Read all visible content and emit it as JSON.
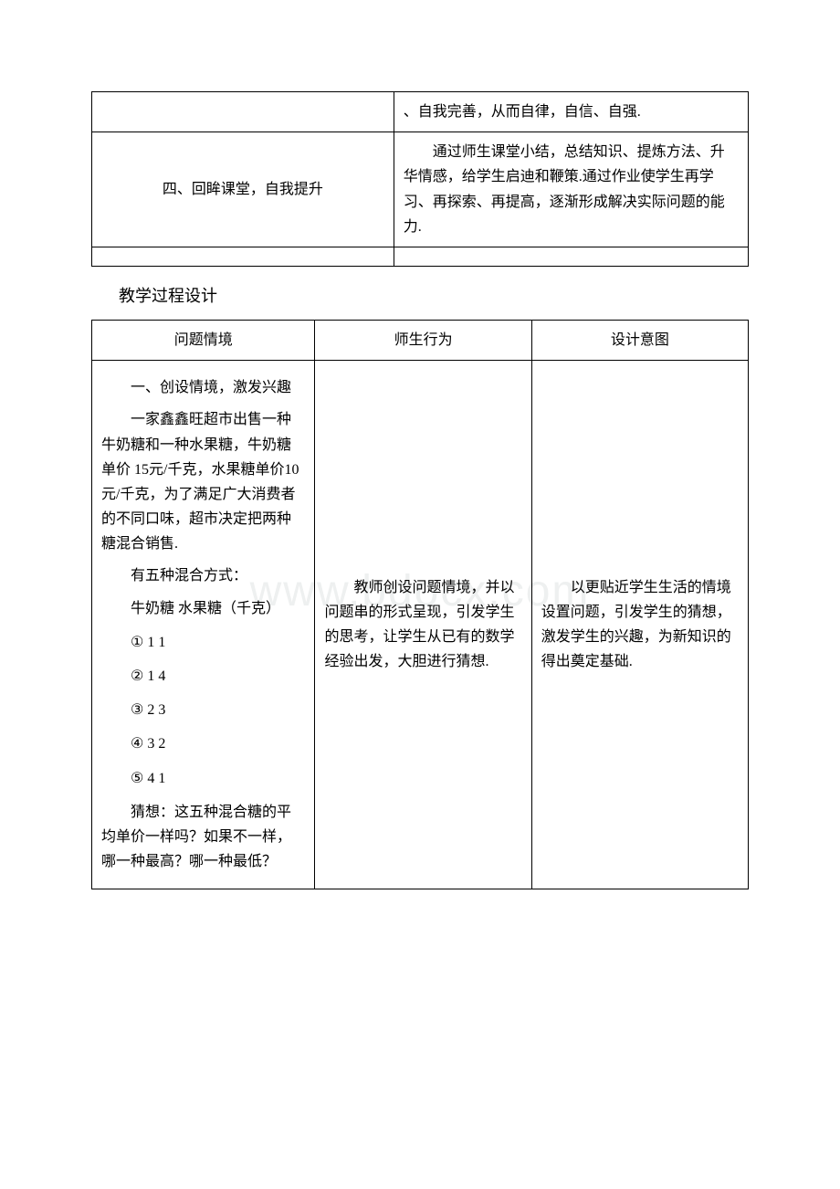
{
  "watermark": "www.bdocx.com",
  "table1": {
    "row1": {
      "right": "、自我完善，从而自律，自信、自强."
    },
    "row2": {
      "left": "四、回眸课堂，自我提升",
      "right_p1": "通过师生课堂小结，总结知识、提炼方法、升华情感，给学生启迪和鞭策.通过作业使学生再学习、再探索、再提高，逐渐形成解决实际问题的能力."
    }
  },
  "sectionTitle": "教学过程设计",
  "table2": {
    "header": {
      "c1": "问题情境",
      "c2": "师生行为",
      "c3": "设计意图"
    },
    "content": {
      "col1": {
        "p1": "一、创设情境，激发兴趣",
        "p2": "一家鑫鑫旺超市出售一种牛奶糖和一种水果糖，牛奶糖单价 15元/千克，水果糖单价10 元/千克，为了满足广大消费者的不同口味，超市决定把两种糖混合销售.",
        "p3": "有五种混合方式：",
        "p4": "牛奶糖 水果糖（千克）",
        "li1": "① 1 1",
        "li2": "② 1 4",
        "li3": "③ 2 3",
        "li4": "④ 3 2",
        "li5": "⑤ 4 1",
        "p5": "猜想：这五种混合糖的平均单价一样吗？如果不一样，哪一种最高？哪一种最低？"
      },
      "col2": "教师创设问题情境，并以问题串的形式呈现，引发学生的思考，让学生从已有的数学经验出发，大胆进行猜想.",
      "col3": "以更贴近学生生活的情境设置问题，引发学生的猜想，激发学生的兴趣，为新知识的得出奠定基础."
    }
  }
}
